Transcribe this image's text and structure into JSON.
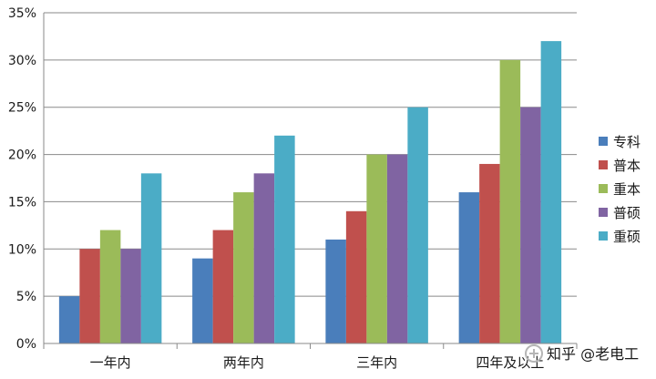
{
  "chart_data": {
    "type": "bar",
    "title": "",
    "xlabel": "",
    "ylabel": "",
    "categories": [
      "一年内",
      "两年内",
      "三年内",
      "四年及以上"
    ],
    "series": [
      {
        "name": "专科",
        "color": "#4a7ebb",
        "values": [
          5,
          9,
          11,
          16
        ]
      },
      {
        "name": "普本",
        "color": "#c0504d",
        "values": [
          10,
          12,
          14,
          19
        ]
      },
      {
        "name": "重本",
        "color": "#9bbb59",
        "values": [
          12,
          16,
          20,
          30
        ]
      },
      {
        "name": "普硕",
        "color": "#8064a2",
        "values": [
          10,
          18,
          20,
          25
        ]
      },
      {
        "name": "重硕",
        "color": "#4bacc6",
        "values": [
          18,
          22,
          25,
          32
        ]
      }
    ],
    "ylim": [
      0,
      35
    ],
    "yticks": [
      "0%",
      "5%",
      "10%",
      "15%",
      "20%",
      "25%",
      "30%",
      "35%"
    ],
    "grid": true,
    "legend_position": "right"
  },
  "watermark": {
    "text": "知乎 @老电工"
  }
}
